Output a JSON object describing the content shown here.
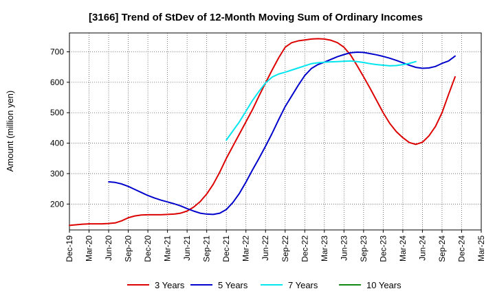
{
  "chart_data": {
    "type": "line",
    "title": "[3166]  Trend of StDev of 12-Month Moving Sum of Ordinary Incomes",
    "xlabel": "",
    "ylabel": "Amount (million yen)",
    "ylim": [
      115,
      762
    ],
    "yticks": [
      200,
      300,
      400,
      500,
      600,
      700
    ],
    "x_tick_labels": [
      "Dec-19",
      "Mar-20",
      "Jun-20",
      "Sep-20",
      "Dec-20",
      "Mar-21",
      "Jun-21",
      "Sep-21",
      "Dec-21",
      "Mar-22",
      "Jun-22",
      "Sep-22",
      "Dec-22",
      "Mar-23",
      "Jun-23",
      "Sep-23",
      "Dec-23",
      "Mar-24",
      "Jun-24",
      "Sep-24",
      "Dec-24",
      "Mar-25"
    ],
    "grid": true,
    "legend_position": "bottom",
    "series": [
      {
        "name": "3 Years",
        "color": "#dd0000",
        "start_index": 0,
        "values": [
          130,
          132,
          134,
          135,
          135,
          135,
          136,
          138,
          145,
          155,
          161,
          164,
          165,
          165,
          165,
          166,
          167,
          170,
          177,
          190,
          208,
          233,
          265,
          305,
          350,
          390,
          430,
          470,
          510,
          555,
          598,
          640,
          680,
          715,
          730,
          736,
          739,
          742,
          743,
          742,
          738,
          730,
          715,
          690,
          655,
          618,
          580,
          540,
          500,
          465,
          438,
          418,
          402,
          396,
          403,
          424,
          455,
          500,
          560,
          618
        ]
      },
      {
        "name": "5 Years",
        "color": "#0000cc",
        "start_index": 6,
        "values": [
          273,
          271,
          266,
          258,
          248,
          238,
          228,
          220,
          213,
          207,
          201,
          194,
          185,
          177,
          170,
          167,
          166,
          170,
          182,
          205,
          235,
          272,
          312,
          350,
          390,
          432,
          477,
          520,
          555,
          590,
          622,
          645,
          658,
          666,
          675,
          684,
          691,
          697,
          699,
          698,
          694,
          690,
          685,
          679,
          672,
          664,
          656,
          649,
          646,
          647,
          652,
          662,
          670,
          686
        ]
      },
      {
        "name": "7 Years",
        "color": "#00e5ee",
        "start_index": 24,
        "values": [
          410,
          440,
          470,
          505,
          540,
          570,
          598,
          617,
          627,
          633,
          640,
          647,
          654,
          661,
          664,
          666,
          667,
          668,
          669,
          670,
          668,
          665,
          661,
          658,
          656,
          654,
          655,
          658,
          662,
          668
        ]
      },
      {
        "name": "10 Years",
        "color": "#118811",
        "start_index": 0,
        "values": []
      }
    ]
  }
}
